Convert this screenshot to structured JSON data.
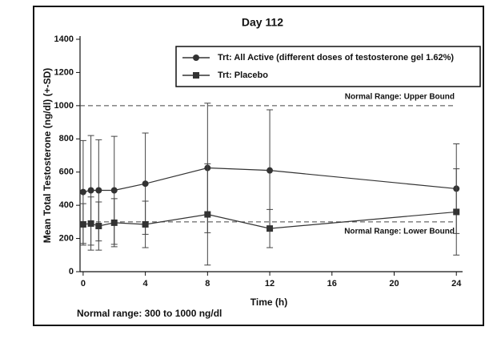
{
  "chart_data": {
    "type": "line",
    "title": "Day 112",
    "x_label": "Time (h)",
    "y_label": "Mean Total Testosterone (ng/dl) (+-SD)",
    "footnote": "Normal range: 300 to 1000 ng/dl",
    "x": [
      0,
      0.5,
      1,
      2,
      4,
      8,
      12,
      24
    ],
    "series": [
      {
        "name": "Trt: All Active (different doses of testosterone gel 1.62%)",
        "color": "#333333",
        "marker": "circle",
        "values": [
          480,
          490,
          490,
          490,
          530,
          625,
          610,
          500
        ],
        "errors": [
          310,
          330,
          305,
          325,
          305,
          390,
          365,
          270
        ]
      },
      {
        "name": "Trt: Placebo",
        "color": "#333333",
        "marker": "square",
        "values": [
          285,
          290,
          275,
          295,
          285,
          345,
          260,
          360
        ],
        "errors": [
          125,
          160,
          145,
          145,
          140,
          305,
          115,
          260
        ]
      }
    ],
    "reference_lines": [
      {
        "value": 1000,
        "label": "Normal Range: Upper Bound"
      },
      {
        "value": 300,
        "label": "Normal Range: Lower Bound"
      }
    ],
    "xlim": [
      -0.2,
      24.4
    ],
    "xticks": [
      0,
      4,
      8,
      12,
      16,
      20,
      24
    ],
    "ylim": [
      0,
      1400
    ],
    "yticks": [
      0,
      200,
      400,
      600,
      800,
      1000,
      1200,
      1400
    ],
    "legend_position": "upper right"
  }
}
